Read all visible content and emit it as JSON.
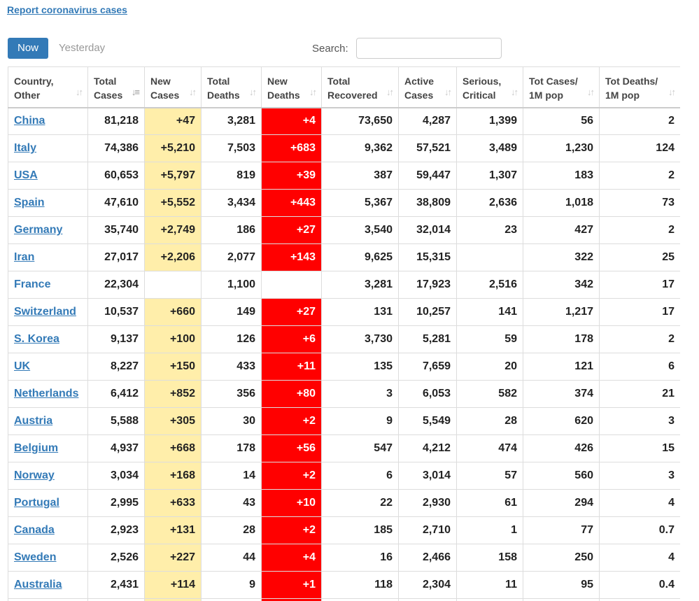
{
  "report_link": "Report coronavirus cases",
  "tabs": {
    "now": "Now",
    "yesterday": "Yesterday"
  },
  "search": {
    "label": "Search:",
    "placeholder": "",
    "value": ""
  },
  "colors": {
    "link": "#337ab7",
    "new_cases_bg": "#ffeeaa",
    "new_deaths_bg": "#ff0000",
    "active_tab_bg": "#337ab7"
  },
  "table": {
    "headers": [
      {
        "label": [
          "Country,",
          "Other"
        ],
        "sort_icon": "sort-icon"
      },
      {
        "label": [
          "Total",
          "Cases"
        ],
        "sort_icon": "sort-desc-icon"
      },
      {
        "label": [
          "New",
          "Cases"
        ],
        "sort_icon": "sort-icon"
      },
      {
        "label": [
          "Total",
          "Deaths"
        ],
        "sort_icon": "sort-icon"
      },
      {
        "label": [
          "New",
          "Deaths"
        ],
        "sort_icon": "sort-icon"
      },
      {
        "label": [
          "Total",
          "Recovered"
        ],
        "sort_icon": "sort-icon"
      },
      {
        "label": [
          "Active",
          "Cases"
        ],
        "sort_icon": "sort-icon"
      },
      {
        "label": [
          "Serious,",
          "Critical"
        ],
        "sort_icon": "sort-icon"
      },
      {
        "label": [
          "Tot Cases/",
          "1M pop"
        ],
        "sort_icon": "sort-icon"
      },
      {
        "label": [
          "Tot Deaths/",
          "1M pop"
        ],
        "sort_icon": "sort-icon"
      }
    ],
    "rows": [
      {
        "country": "China",
        "linked": true,
        "total_cases": "81,218",
        "new_cases": "+47",
        "total_deaths": "3,281",
        "new_deaths": "+4",
        "total_recovered": "73,650",
        "active_cases": "4,287",
        "serious": "1,399",
        "cases_per_m": "56",
        "deaths_per_m": "2"
      },
      {
        "country": "Italy",
        "linked": true,
        "total_cases": "74,386",
        "new_cases": "+5,210",
        "total_deaths": "7,503",
        "new_deaths": "+683",
        "total_recovered": "9,362",
        "active_cases": "57,521",
        "serious": "3,489",
        "cases_per_m": "1,230",
        "deaths_per_m": "124"
      },
      {
        "country": "USA",
        "linked": true,
        "total_cases": "60,653",
        "new_cases": "+5,797",
        "total_deaths": "819",
        "new_deaths": "+39",
        "total_recovered": "387",
        "active_cases": "59,447",
        "serious": "1,307",
        "cases_per_m": "183",
        "deaths_per_m": "2"
      },
      {
        "country": "Spain",
        "linked": true,
        "total_cases": "47,610",
        "new_cases": "+5,552",
        "total_deaths": "3,434",
        "new_deaths": "+443",
        "total_recovered": "5,367",
        "active_cases": "38,809",
        "serious": "2,636",
        "cases_per_m": "1,018",
        "deaths_per_m": "73"
      },
      {
        "country": "Germany",
        "linked": true,
        "total_cases": "35,740",
        "new_cases": "+2,749",
        "total_deaths": "186",
        "new_deaths": "+27",
        "total_recovered": "3,540",
        "active_cases": "32,014",
        "serious": "23",
        "cases_per_m": "427",
        "deaths_per_m": "2"
      },
      {
        "country": "Iran",
        "linked": true,
        "total_cases": "27,017",
        "new_cases": "+2,206",
        "total_deaths": "2,077",
        "new_deaths": "+143",
        "total_recovered": "9,625",
        "active_cases": "15,315",
        "serious": "",
        "cases_per_m": "322",
        "deaths_per_m": "25"
      },
      {
        "country": "France",
        "linked": false,
        "total_cases": "22,304",
        "new_cases": "",
        "total_deaths": "1,100",
        "new_deaths": "",
        "total_recovered": "3,281",
        "active_cases": "17,923",
        "serious": "2,516",
        "cases_per_m": "342",
        "deaths_per_m": "17"
      },
      {
        "country": "Switzerland",
        "linked": true,
        "total_cases": "10,537",
        "new_cases": "+660",
        "total_deaths": "149",
        "new_deaths": "+27",
        "total_recovered": "131",
        "active_cases": "10,257",
        "serious": "141",
        "cases_per_m": "1,217",
        "deaths_per_m": "17"
      },
      {
        "country": "S. Korea",
        "linked": true,
        "total_cases": "9,137",
        "new_cases": "+100",
        "total_deaths": "126",
        "new_deaths": "+6",
        "total_recovered": "3,730",
        "active_cases": "5,281",
        "serious": "59",
        "cases_per_m": "178",
        "deaths_per_m": "2"
      },
      {
        "country": "UK",
        "linked": true,
        "total_cases": "8,227",
        "new_cases": "+150",
        "total_deaths": "433",
        "new_deaths": "+11",
        "total_recovered": "135",
        "active_cases": "7,659",
        "serious": "20",
        "cases_per_m": "121",
        "deaths_per_m": "6"
      },
      {
        "country": "Netherlands",
        "linked": true,
        "total_cases": "6,412",
        "new_cases": "+852",
        "total_deaths": "356",
        "new_deaths": "+80",
        "total_recovered": "3",
        "active_cases": "6,053",
        "serious": "582",
        "cases_per_m": "374",
        "deaths_per_m": "21"
      },
      {
        "country": "Austria",
        "linked": true,
        "total_cases": "5,588",
        "new_cases": "+305",
        "total_deaths": "30",
        "new_deaths": "+2",
        "total_recovered": "9",
        "active_cases": "5,549",
        "serious": "28",
        "cases_per_m": "620",
        "deaths_per_m": "3"
      },
      {
        "country": "Belgium",
        "linked": true,
        "total_cases": "4,937",
        "new_cases": "+668",
        "total_deaths": "178",
        "new_deaths": "+56",
        "total_recovered": "547",
        "active_cases": "4,212",
        "serious": "474",
        "cases_per_m": "426",
        "deaths_per_m": "15"
      },
      {
        "country": "Norway",
        "linked": true,
        "total_cases": "3,034",
        "new_cases": "+168",
        "total_deaths": "14",
        "new_deaths": "+2",
        "total_recovered": "6",
        "active_cases": "3,014",
        "serious": "57",
        "cases_per_m": "560",
        "deaths_per_m": "3"
      },
      {
        "country": "Portugal",
        "linked": true,
        "total_cases": "2,995",
        "new_cases": "+633",
        "total_deaths": "43",
        "new_deaths": "+10",
        "total_recovered": "22",
        "active_cases": "2,930",
        "serious": "61",
        "cases_per_m": "294",
        "deaths_per_m": "4"
      },
      {
        "country": "Canada",
        "linked": true,
        "total_cases": "2,923",
        "new_cases": "+131",
        "total_deaths": "28",
        "new_deaths": "+2",
        "total_recovered": "185",
        "active_cases": "2,710",
        "serious": "1",
        "cases_per_m": "77",
        "deaths_per_m": "0.7"
      },
      {
        "country": "Sweden",
        "linked": true,
        "total_cases": "2,526",
        "new_cases": "+227",
        "total_deaths": "44",
        "new_deaths": "+4",
        "total_recovered": "16",
        "active_cases": "2,466",
        "serious": "158",
        "cases_per_m": "250",
        "deaths_per_m": "4"
      },
      {
        "country": "Australia",
        "linked": true,
        "total_cases": "2,431",
        "new_cases": "+114",
        "total_deaths": "9",
        "new_deaths": "+1",
        "total_recovered": "118",
        "active_cases": "2,304",
        "serious": "11",
        "cases_per_m": "95",
        "deaths_per_m": "0.4"
      },
      {
        "country": "",
        "linked": false,
        "total_cases": "",
        "new_cases": "",
        "total_deaths": "",
        "new_deaths": "",
        "total_recovered": "",
        "active_cases": "",
        "serious": "",
        "cases_per_m": "",
        "deaths_per_m": ""
      }
    ]
  }
}
